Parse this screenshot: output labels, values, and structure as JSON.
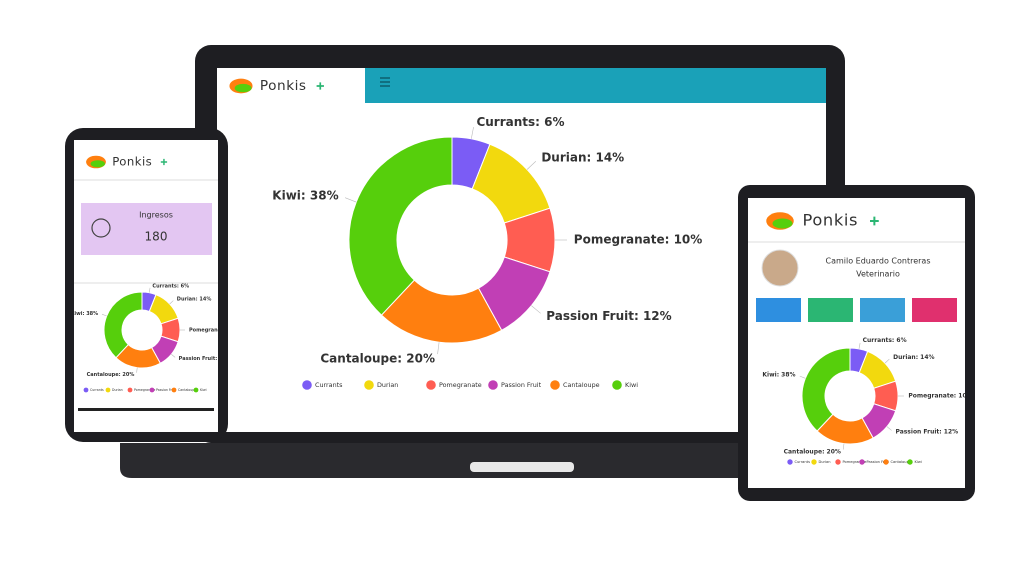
{
  "brand": "Ponkis",
  "phone": {
    "card": {
      "title": "Ingresos",
      "value": 180
    }
  },
  "tablet": {
    "profile": {
      "name": "Camilo Eduardo Contreras",
      "role": "Veterinario"
    }
  },
  "chart_data": {
    "type": "pie",
    "donut": true,
    "categories": [
      "Currants",
      "Durian",
      "Pomegranate",
      "Passion Fruit",
      "Cantaloupe",
      "Kiwi"
    ],
    "values": [
      6,
      14,
      10,
      12,
      20,
      38
    ],
    "value_labels": [
      "Currants: 6%",
      "Durian: 14%",
      "Pomegranate: 10%",
      "Passion Fruit: 12%",
      "Cantaloupe: 20%",
      "Kiwi: 38%"
    ],
    "colors": [
      "#7b5cf5",
      "#f2d90e",
      "#ff5d52",
      "#c13fb5",
      "#ff7f0f",
      "#56cf0c"
    ]
  }
}
